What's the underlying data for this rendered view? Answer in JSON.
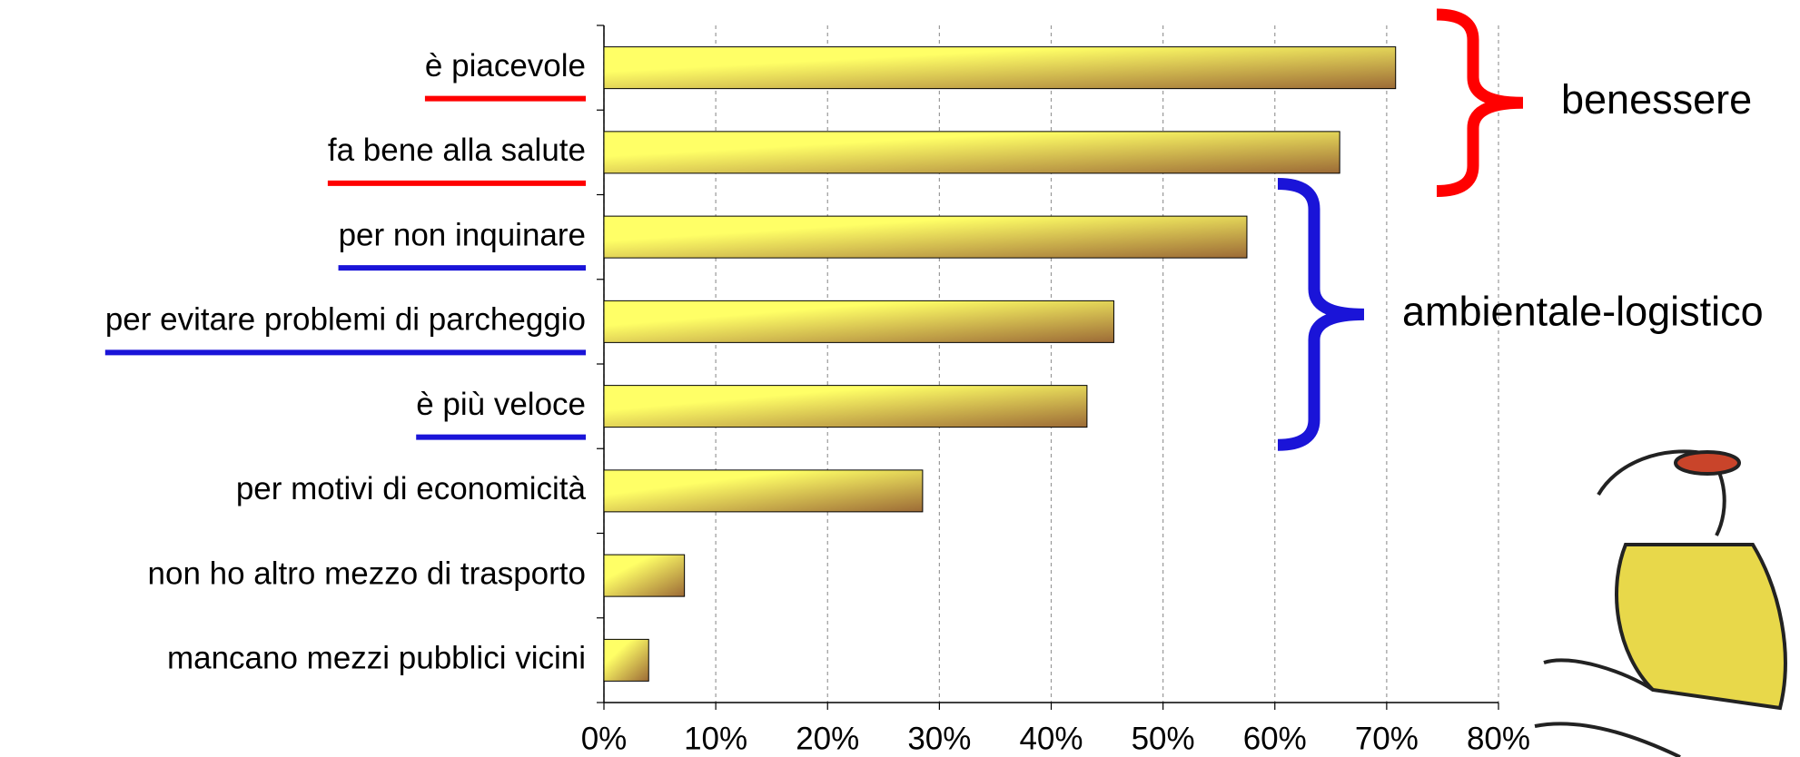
{
  "chart_data": {
    "type": "bar",
    "orientation": "horizontal",
    "categories": [
      "è piacevole",
      "fa bene alla salute",
      "per non inquinare",
      "per evitare problemi di parcheggio",
      "è più veloce",
      "per motivi di economicità",
      "non ho altro mezzo di trasporto",
      "mancano mezzi pubblici vicini"
    ],
    "values": [
      70.8,
      65.8,
      57.5,
      45.6,
      43.2,
      28.5,
      7.2,
      4.0
    ],
    "color": [
      "#ffff66",
      "#9c6a36"
    ],
    "xlim": [
      0,
      80
    ],
    "xticks": [
      {
        "value": 0,
        "label": "0%"
      },
      {
        "value": 10,
        "label": "10%"
      },
      {
        "value": 20,
        "label": "20%"
      },
      {
        "value": 30,
        "label": "30%"
      },
      {
        "value": 40,
        "label": "40%"
      },
      {
        "value": 50,
        "label": "50%"
      },
      {
        "value": 60,
        "label": "60%"
      },
      {
        "value": 70,
        "label": "70%"
      },
      {
        "value": 80,
        "label": "80%"
      }
    ],
    "grid": true,
    "groups": [
      {
        "label": "benessere",
        "color": "#ff0000",
        "categories": [
          "è piacevole",
          "fa bene alla salute"
        ]
      },
      {
        "label": "ambientale-logistico",
        "color": "#1a14d8",
        "categories": [
          "per non inquinare",
          "per evitare problemi di parcheggio",
          "è più veloce"
        ]
      }
    ]
  }
}
